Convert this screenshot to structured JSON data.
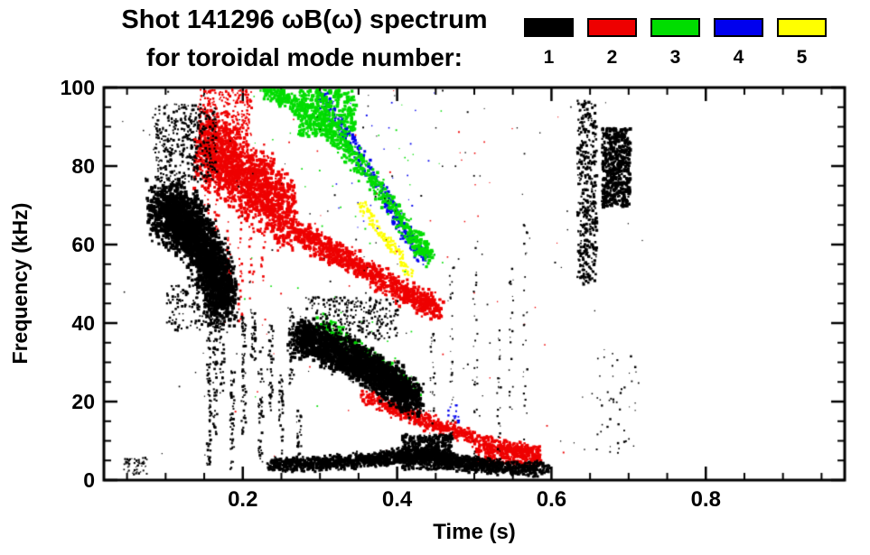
{
  "chart_data": {
    "type": "scatter",
    "title": "Shot 141296 ωB(ω) spectrum",
    "subtitle": "for toroidal mode number:",
    "xlabel": "Time (s)",
    "ylabel": "Frequency (kHz)",
    "xlim": [
      0.02,
      0.98
    ],
    "ylim": [
      0,
      100
    ],
    "x_ticks": [
      {
        "v": 0.2,
        "label": "0.2"
      },
      {
        "v": 0.4,
        "label": "0.4"
      },
      {
        "v": 0.6,
        "label": "0.6"
      },
      {
        "v": 0.8,
        "label": "0.8"
      }
    ],
    "y_ticks": [
      {
        "v": 0,
        "label": "0"
      },
      {
        "v": 20,
        "label": "20"
      },
      {
        "v": 40,
        "label": "40"
      },
      {
        "v": 60,
        "label": "60"
      },
      {
        "v": 80,
        "label": "80"
      },
      {
        "v": 100,
        "label": "100"
      }
    ],
    "x_minor_step": 0.05,
    "y_minor_step": 5,
    "grid": false,
    "legend_position": "top-right",
    "rng_seed": 1234,
    "legend": [
      {
        "label": "1",
        "color": "#000000"
      },
      {
        "label": "2",
        "color": "#ee0000"
      },
      {
        "label": "3",
        "color": "#00dd00"
      },
      {
        "label": "4",
        "color": "#0000ee"
      },
      {
        "label": "5",
        "color": "#ffff00"
      }
    ],
    "series": [
      {
        "name": "toroidal mode n=1",
        "color": "#000000",
        "features": [
          {
            "type": "ridge",
            "path": [
              [
                0.09,
                70
              ],
              [
                0.115,
                67
              ],
              [
                0.14,
                62
              ],
              [
                0.16,
                54
              ],
              [
                0.175,
                46
              ]
            ],
            "spread": 9,
            "count": 2600,
            "size": [
              2,
              4.5
            ],
            "tjitter": 0.018
          },
          {
            "type": "blob",
            "t": [
              0.085,
              0.165
            ],
            "f": [
              76,
              96
            ],
            "count": 420,
            "size": [
              1.5,
              3
            ]
          },
          {
            "type": "blob",
            "t": [
              0.1,
              0.17
            ],
            "f": [
              38,
              50
            ],
            "count": 150,
            "size": [
              1.5,
              3
            ]
          },
          {
            "type": "streaks",
            "items": [
              [
                0.155,
                4,
                40,
                60
              ],
              [
                0.163,
                12,
                52,
                70
              ],
              [
                0.172,
                22,
                58,
                60
              ],
              [
                0.185,
                3,
                28,
                45
              ],
              [
                0.2,
                12,
                44,
                55
              ],
              [
                0.212,
                30,
                44,
                35
              ],
              [
                0.222,
                4,
                34,
                45
              ],
              [
                0.235,
                18,
                40,
                40
              ],
              [
                0.248,
                6,
                28,
                35
              ],
              [
                0.262,
                24,
                44,
                40
              ],
              [
                0.272,
                4,
                18,
                30
              ]
            ],
            "size": [
              1.5,
              3
            ]
          },
          {
            "type": "ridge",
            "path": [
              [
                0.27,
                37
              ],
              [
                0.31,
                34
              ],
              [
                0.35,
                30
              ],
              [
                0.385,
                26
              ],
              [
                0.42,
                21
              ]
            ],
            "spread": 5.5,
            "count": 2200,
            "size": [
              2,
              4.5
            ],
            "tjitter": 0.014
          },
          {
            "type": "blob",
            "t": [
              0.28,
              0.4
            ],
            "f": [
              36,
              47
            ],
            "count": 260,
            "size": [
              1.5,
              3
            ]
          },
          {
            "type": "ridge",
            "path": [
              [
                0.235,
                4
              ],
              [
                0.3,
                4.5
              ],
              [
                0.36,
                5.5
              ],
              [
                0.405,
                6.5
              ],
              [
                0.44,
                7
              ],
              [
                0.47,
                5
              ],
              [
                0.52,
                3.8
              ],
              [
                0.59,
                3
              ]
            ],
            "spread": 2.2,
            "count": 2200,
            "size": [
              2,
              3.5
            ],
            "tjitter": 0.01
          },
          {
            "type": "blob",
            "t": [
              0.405,
              0.47
            ],
            "f": [
              3,
              12
            ],
            "count": 500,
            "size": [
              2,
              3.5
            ]
          },
          {
            "type": "streaks",
            "items": [
              [
                0.445,
                10,
                40,
                25
              ],
              [
                0.47,
                8,
                55,
                30
              ],
              [
                0.5,
                6,
                62,
                28
              ],
              [
                0.53,
                5,
                45,
                22
              ],
              [
                0.547,
                18,
                58,
                20
              ],
              [
                0.565,
                4,
                66,
                26
              ]
            ],
            "size": [
              1,
              2.5
            ]
          },
          {
            "type": "blob",
            "t": [
              0.632,
              0.657
            ],
            "f": [
              50,
              97
            ],
            "count": 380,
            "size": [
              1.5,
              3.5
            ]
          },
          {
            "type": "blob",
            "t": [
              0.664,
              0.7
            ],
            "f": [
              70,
              90
            ],
            "count": 520,
            "size": [
              2,
              4
            ]
          },
          {
            "type": "blob",
            "t": [
              0.655,
              0.71
            ],
            "f": [
              5,
              35
            ],
            "count": 45,
            "size": [
              1,
              2.5
            ]
          },
          {
            "type": "blob",
            "t": [
              0.04,
              0.72
            ],
            "f": [
              1,
              100
            ],
            "count": 130,
            "size": [
              1,
              2
            ]
          },
          {
            "type": "blob",
            "t": [
              0.045,
              0.075
            ],
            "f": [
              1.5,
              6
            ],
            "count": 60,
            "size": [
              1,
              2.5
            ]
          }
        ]
      },
      {
        "name": "toroidal mode n=2",
        "color": "#ee0000",
        "features": [
          {
            "type": "ridge",
            "path": [
              [
                0.145,
                85
              ],
              [
                0.18,
                81
              ],
              [
                0.22,
                75
              ],
              [
                0.26,
                68
              ]
            ],
            "spread": 11,
            "count": 1700,
            "size": [
              2,
              4
            ],
            "tjitter": 0.012
          },
          {
            "type": "blob",
            "t": [
              0.14,
              0.21
            ],
            "f": [
              88,
              100
            ],
            "count": 260,
            "size": [
              1.5,
              3
            ]
          },
          {
            "type": "streaks",
            "items": [
              [
                0.152,
                60,
                95,
                40
              ],
              [
                0.165,
                55,
                92,
                40
              ],
              [
                0.18,
                50,
                88,
                35
              ],
              [
                0.195,
                40,
                80,
                30
              ],
              [
                0.21,
                45,
                78,
                25
              ],
              [
                0.225,
                50,
                75,
                20
              ]
            ],
            "size": [
              1.5,
              3
            ]
          },
          {
            "type": "ridge",
            "path": [
              [
                0.26,
                65
              ],
              [
                0.3,
                60
              ],
              [
                0.34,
                56
              ],
              [
                0.38,
                51
              ],
              [
                0.42,
                47
              ],
              [
                0.45,
                44
              ]
            ],
            "spread": 3.5,
            "count": 1000,
            "size": [
              2,
              4
            ],
            "tjitter": 0.01
          },
          {
            "type": "ridge",
            "path": [
              [
                0.355,
                22
              ],
              [
                0.4,
                18
              ],
              [
                0.44,
                15
              ],
              [
                0.485,
                12
              ],
              [
                0.53,
                9
              ],
              [
                0.575,
                7.5
              ]
            ],
            "spread": 2.2,
            "count": 750,
            "size": [
              2,
              3.5
            ],
            "tjitter": 0.01
          },
          {
            "type": "blob",
            "t": [
              0.5,
              0.585
            ],
            "f": [
              4,
              9
            ],
            "count": 330,
            "size": [
              2,
              3.5
            ]
          },
          {
            "type": "blob",
            "t": [
              0.14,
              0.62
            ],
            "f": [
              5,
              100
            ],
            "count": 70,
            "size": [
              1,
              2
            ]
          }
        ]
      },
      {
        "name": "toroidal mode n=3",
        "color": "#00dd00",
        "features": [
          {
            "type": "ridge",
            "path": [
              [
                0.225,
                100
              ],
              [
                0.26,
                97
              ],
              [
                0.3,
                91
              ],
              [
                0.34,
                83
              ],
              [
                0.38,
                73
              ],
              [
                0.42,
                62
              ],
              [
                0.44,
                57
              ]
            ],
            "spread": 2.8,
            "count": 700,
            "size": [
              2,
              4
            ],
            "tjitter": 0.01
          },
          {
            "type": "blob",
            "t": [
              0.27,
              0.345
            ],
            "f": [
              88,
              100
            ],
            "count": 380,
            "size": [
              2,
              4
            ]
          },
          {
            "type": "ridge",
            "path": [
              [
                0.3,
                41
              ],
              [
                0.34,
                35
              ],
              [
                0.38,
                29
              ],
              [
                0.42,
                23
              ]
            ],
            "spread": 2.5,
            "count": 320,
            "size": [
              2,
              3.5
            ],
            "tjitter": 0.01
          },
          {
            "type": "blob",
            "t": [
              0.2,
              0.46
            ],
            "f": [
              18,
              100
            ],
            "count": 55,
            "size": [
              1,
              2
            ]
          }
        ]
      },
      {
        "name": "toroidal mode n=4",
        "color": "#0000ee",
        "features": [
          {
            "type": "ridge",
            "path": [
              [
                0.295,
                100
              ],
              [
                0.33,
                89
              ],
              [
                0.365,
                78
              ],
              [
                0.4,
                66
              ],
              [
                0.435,
                56
              ]
            ],
            "spread": 1.8,
            "count": 330,
            "size": [
              2,
              3.5
            ],
            "tjitter": 0.008
          },
          {
            "type": "blob",
            "t": [
              0.29,
              0.45
            ],
            "f": [
              52,
              100
            ],
            "count": 35,
            "size": [
              1,
              2
            ]
          },
          {
            "type": "blob",
            "t": [
              0.465,
              0.48
            ],
            "f": [
              14,
              20
            ],
            "count": 15,
            "size": [
              1.5,
              2.5
            ]
          }
        ]
      },
      {
        "name": "toroidal mode n=5",
        "color": "#ffff00",
        "features": [
          {
            "type": "ridge",
            "path": [
              [
                0.35,
                71
              ],
              [
                0.375,
                64
              ],
              [
                0.4,
                58
              ],
              [
                0.415,
                53
              ]
            ],
            "spread": 1.4,
            "count": 130,
            "size": [
              2,
              3
            ],
            "tjitter": 0.006
          }
        ]
      }
    ]
  }
}
